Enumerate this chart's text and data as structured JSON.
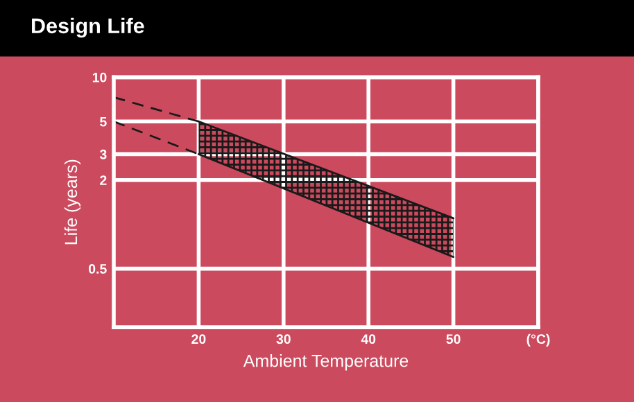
{
  "chart_data": {
    "type": "line",
    "title": "Design Life",
    "xlabel": "Ambient Temperature",
    "ylabel": "Life (years)",
    "series": [
      {
        "color": "#1a1a1a",
        "line_style": "dashed",
        "x": [
          10,
          20
        ],
        "values": [
          7.3,
          5
        ]
      },
      {
        "color": "#1a1a1a",
        "line_style": "dashed",
        "x": [
          10,
          20
        ],
        "values": [
          5,
          3
        ]
      },
      {
        "color": "#1a1a1a",
        "line_style": "solid",
        "x": [
          20,
          50
        ],
        "values": [
          5,
          1.1
        ],
        "lower": [
          3,
          0.6
        ],
        "upper": [
          5,
          1.1
        ]
      },
      {
        "color": "#1a1a1a",
        "line_style": "solid",
        "x": [
          20,
          50
        ],
        "values": [
          3,
          0.6
        ]
      }
    ],
    "log": "y",
    "xlim": [
      10,
      60
    ],
    "xticks": [
      20,
      30,
      40,
      50,
      {
        "value": 60,
        "label": "(°C)"
      }
    ],
    "ylim": [
      0.2,
      10
    ],
    "yticks": [
      0.5,
      2,
      3,
      5,
      10
    ],
    "grid": true,
    "marker": "none"
  }
}
